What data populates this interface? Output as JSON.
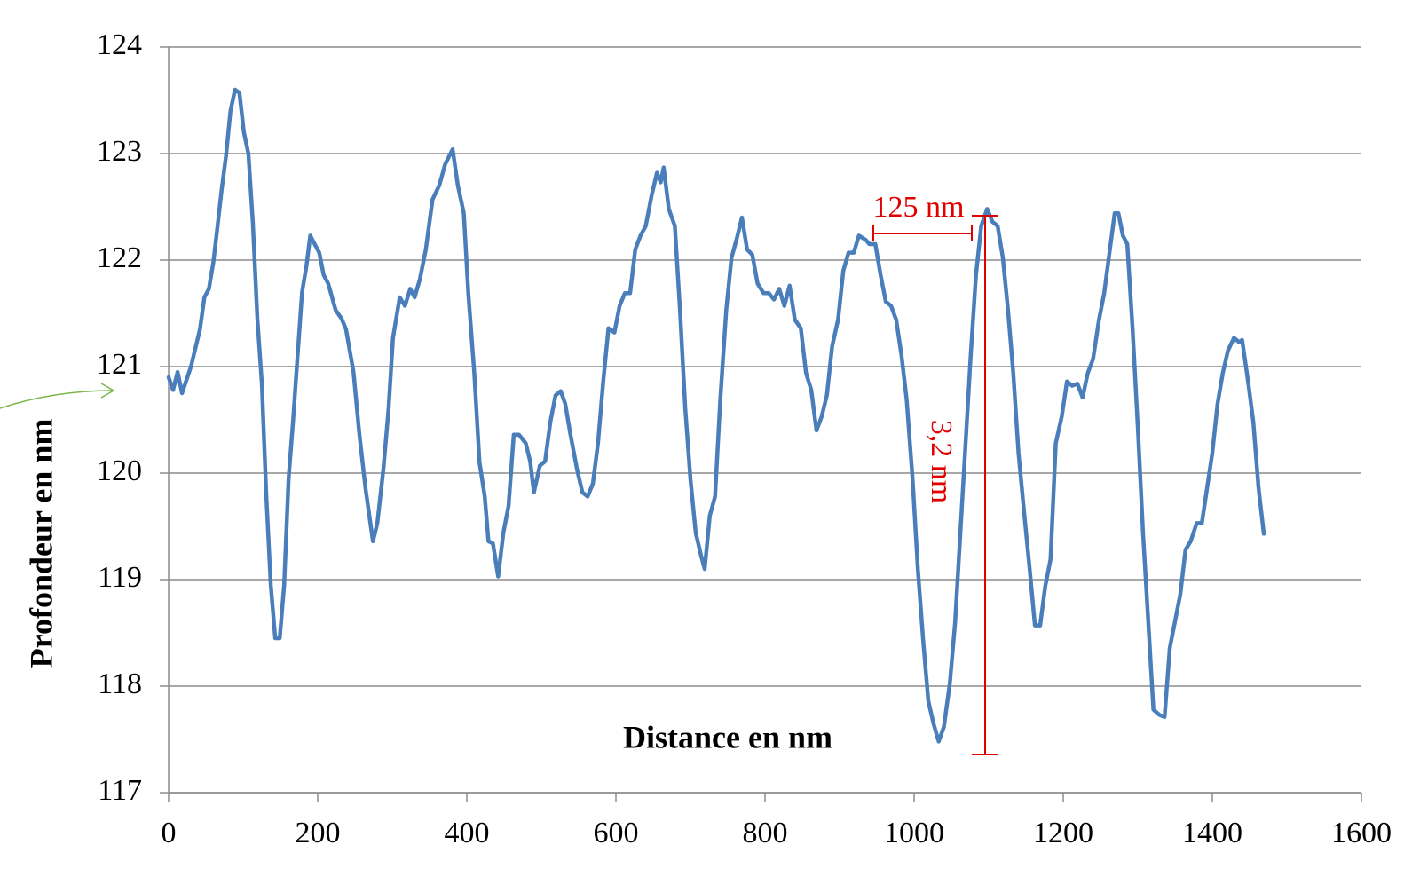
{
  "chart_data": {
    "type": "line",
    "x_label": "Distance en nm",
    "y_label": "Profondeur en nm",
    "annotations": [
      {
        "text": "125 nm"
      },
      {
        "text": "3,2 nm"
      }
    ],
    "x": [
      0,
      6,
      12,
      18,
      30,
      42,
      48,
      54,
      60,
      65,
      71,
      77,
      83,
      89,
      95,
      101,
      107,
      113,
      119,
      125,
      131,
      137,
      143,
      149,
      155,
      161,
      167,
      173,
      179,
      185,
      190,
      196,
      202,
      208,
      214,
      224,
      232,
      238,
      248,
      256,
      264,
      274,
      280,
      288,
      295,
      301,
      310,
      317,
      324,
      330,
      337,
      345,
      354,
      363,
      371,
      381,
      388,
      396,
      402,
      410,
      417,
      424,
      429,
      435,
      442,
      449,
      456,
      463,
      470,
      479,
      485,
      490,
      498,
      505,
      512,
      519,
      526,
      532,
      539,
      548,
      555,
      562,
      569,
      576,
      583,
      590,
      598,
      605,
      612,
      619,
      626,
      633,
      640,
      648,
      655,
      660,
      664,
      671,
      679,
      686,
      693,
      700,
      707,
      714,
      719,
      726,
      733,
      740,
      748,
      755,
      762,
      769,
      776,
      783,
      790,
      798,
      805,
      812,
      819,
      826,
      833,
      840,
      848,
      855,
      862,
      869,
      876,
      883,
      890,
      898,
      905,
      912,
      919,
      926,
      935,
      940,
      948,
      955,
      962,
      969,
      976,
      983,
      990,
      998,
      1005,
      1012,
      1019,
      1026,
      1033,
      1040,
      1048,
      1055,
      1062,
      1069,
      1076,
      1083,
      1090,
      1098,
      1105,
      1112,
      1119,
      1126,
      1133,
      1140,
      1148,
      1155,
      1162,
      1169,
      1176,
      1183,
      1190,
      1198,
      1205,
      1212,
      1219,
      1226,
      1233,
      1240,
      1248,
      1255,
      1262,
      1269,
      1274,
      1280,
      1286,
      1293,
      1300,
      1307,
      1314,
      1321,
      1329,
      1336,
      1343,
      1350,
      1357,
      1364,
      1371,
      1379,
      1386,
      1393,
      1400,
      1407,
      1414,
      1421,
      1429,
      1436,
      1440,
      1448,
      1455,
      1462,
      1469
    ],
    "series": [
      {
        "color": "#4a7ebb",
        "values": [
          120.9,
          120.78,
          120.95,
          120.75,
          121.0,
          121.35,
          121.65,
          121.73,
          121.98,
          122.28,
          122.65,
          122.98,
          123.4,
          123.6,
          123.57,
          123.2,
          123.0,
          122.35,
          121.45,
          120.85,
          119.8,
          118.95,
          118.45,
          118.45,
          118.95,
          119.95,
          120.5,
          121.1,
          121.7,
          121.95,
          122.23,
          122.15,
          122.07,
          121.86,
          121.78,
          121.53,
          121.45,
          121.35,
          120.95,
          120.36,
          119.86,
          119.36,
          119.53,
          120.03,
          120.6,
          121.27,
          121.65,
          121.57,
          121.73,
          121.65,
          121.82,
          122.1,
          122.57,
          122.7,
          122.9,
          123.04,
          122.7,
          122.44,
          121.69,
          120.94,
          120.1,
          119.78,
          119.36,
          119.34,
          119.03,
          119.44,
          119.69,
          120.36,
          120.36,
          120.28,
          120.11,
          119.82,
          120.07,
          120.11,
          120.48,
          120.73,
          120.77,
          120.65,
          120.36,
          120.03,
          119.82,
          119.78,
          119.9,
          120.28,
          120.86,
          121.36,
          121.32,
          121.57,
          121.69,
          121.69,
          122.1,
          122.23,
          122.32,
          122.61,
          122.82,
          122.73,
          122.87,
          122.48,
          122.32,
          121.53,
          120.61,
          119.94,
          119.44,
          119.23,
          119.1,
          119.6,
          119.78,
          120.69,
          121.53,
          122.02,
          122.2,
          122.4,
          122.1,
          122.05,
          121.78,
          121.69,
          121.69,
          121.63,
          121.73,
          121.57,
          121.76,
          121.44,
          121.36,
          120.94,
          120.78,
          120.4,
          120.53,
          120.73,
          121.19,
          121.44,
          121.9,
          122.07,
          122.07,
          122.23,
          122.19,
          122.15,
          122.15,
          121.86,
          121.61,
          121.57,
          121.44,
          121.11,
          120.69,
          119.94,
          119.1,
          118.44,
          117.86,
          117.65,
          117.48,
          117.62,
          118.03,
          118.6,
          119.44,
          120.28,
          121.11,
          121.86,
          122.32,
          122.48,
          122.36,
          122.32,
          122.02,
          121.53,
          120.94,
          120.19,
          119.6,
          119.1,
          118.57,
          118.57,
          118.94,
          119.19,
          120.28,
          120.53,
          120.86,
          120.82,
          120.84,
          120.71,
          120.94,
          121.07,
          121.44,
          121.69,
          122.07,
          122.44,
          122.44,
          122.23,
          122.15,
          121.36,
          120.44,
          119.44,
          118.61,
          117.78,
          117.73,
          117.71,
          118.36,
          118.61,
          118.86,
          119.28,
          119.36,
          119.53,
          119.53,
          119.86,
          120.19,
          120.65,
          120.94,
          121.15,
          121.27,
          121.23,
          121.25,
          120.86,
          120.48,
          119.86,
          119.43
        ]
      }
    ],
    "xlim": [
      0,
      1600
    ],
    "xticks": [
      0,
      200,
      400,
      600,
      800,
      1000,
      1200,
      1400,
      1600
    ],
    "ylim": [
      117,
      124
    ],
    "yticks": [
      117,
      118,
      119,
      120,
      121,
      122,
      123,
      124
    ],
    "grid": true
  }
}
